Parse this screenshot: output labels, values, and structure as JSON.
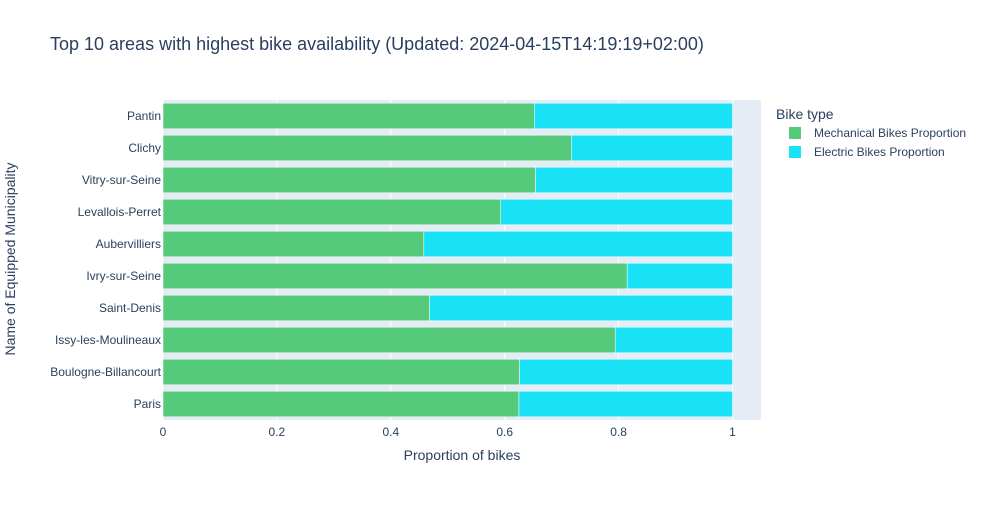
{
  "chart_data": {
    "type": "bar",
    "orientation": "horizontal",
    "stacked": true,
    "title": "Top 10 areas with highest bike availability (Updated: 2024-04-15T14:19:19+02:00)",
    "xlabel": "Proportion of bikes",
    "ylabel": "Name of Equipped Municipality",
    "xlim": [
      0,
      1.05
    ],
    "x_ticks": [
      0,
      0.2,
      0.4,
      0.6,
      0.8,
      1
    ],
    "x_tick_labels": [
      "0",
      "0.2",
      "0.4",
      "0.6",
      "0.8",
      "1"
    ],
    "grid": true,
    "legend": {
      "title": "Bike type",
      "placement": "top-right"
    },
    "categories": [
      "Pantin",
      "Clichy",
      "Vitry-sur-Seine",
      "Levallois-Perret",
      "Aubervilliers",
      "Ivry-sur-Seine",
      "Saint-Denis",
      "Issy-les-Moulineaux",
      "Boulogne-Billancourt",
      "Paris"
    ],
    "series": [
      {
        "name": "Mechanical Bikes Proportion",
        "color": "#54ca7a",
        "values": [
          0.652,
          0.717,
          0.654,
          0.593,
          0.458,
          0.815,
          0.468,
          0.794,
          0.626,
          0.625
        ]
      },
      {
        "name": "Electric Bikes Proportion",
        "color": "#19e2f6",
        "values": [
          0.348,
          0.283,
          0.346,
          0.407,
          0.542,
          0.185,
          0.532,
          0.206,
          0.374,
          0.375
        ]
      }
    ],
    "colors": {
      "plot_background": "#e5ecf6",
      "gridline": "#ffffff",
      "text": "#2a3f5f"
    }
  }
}
